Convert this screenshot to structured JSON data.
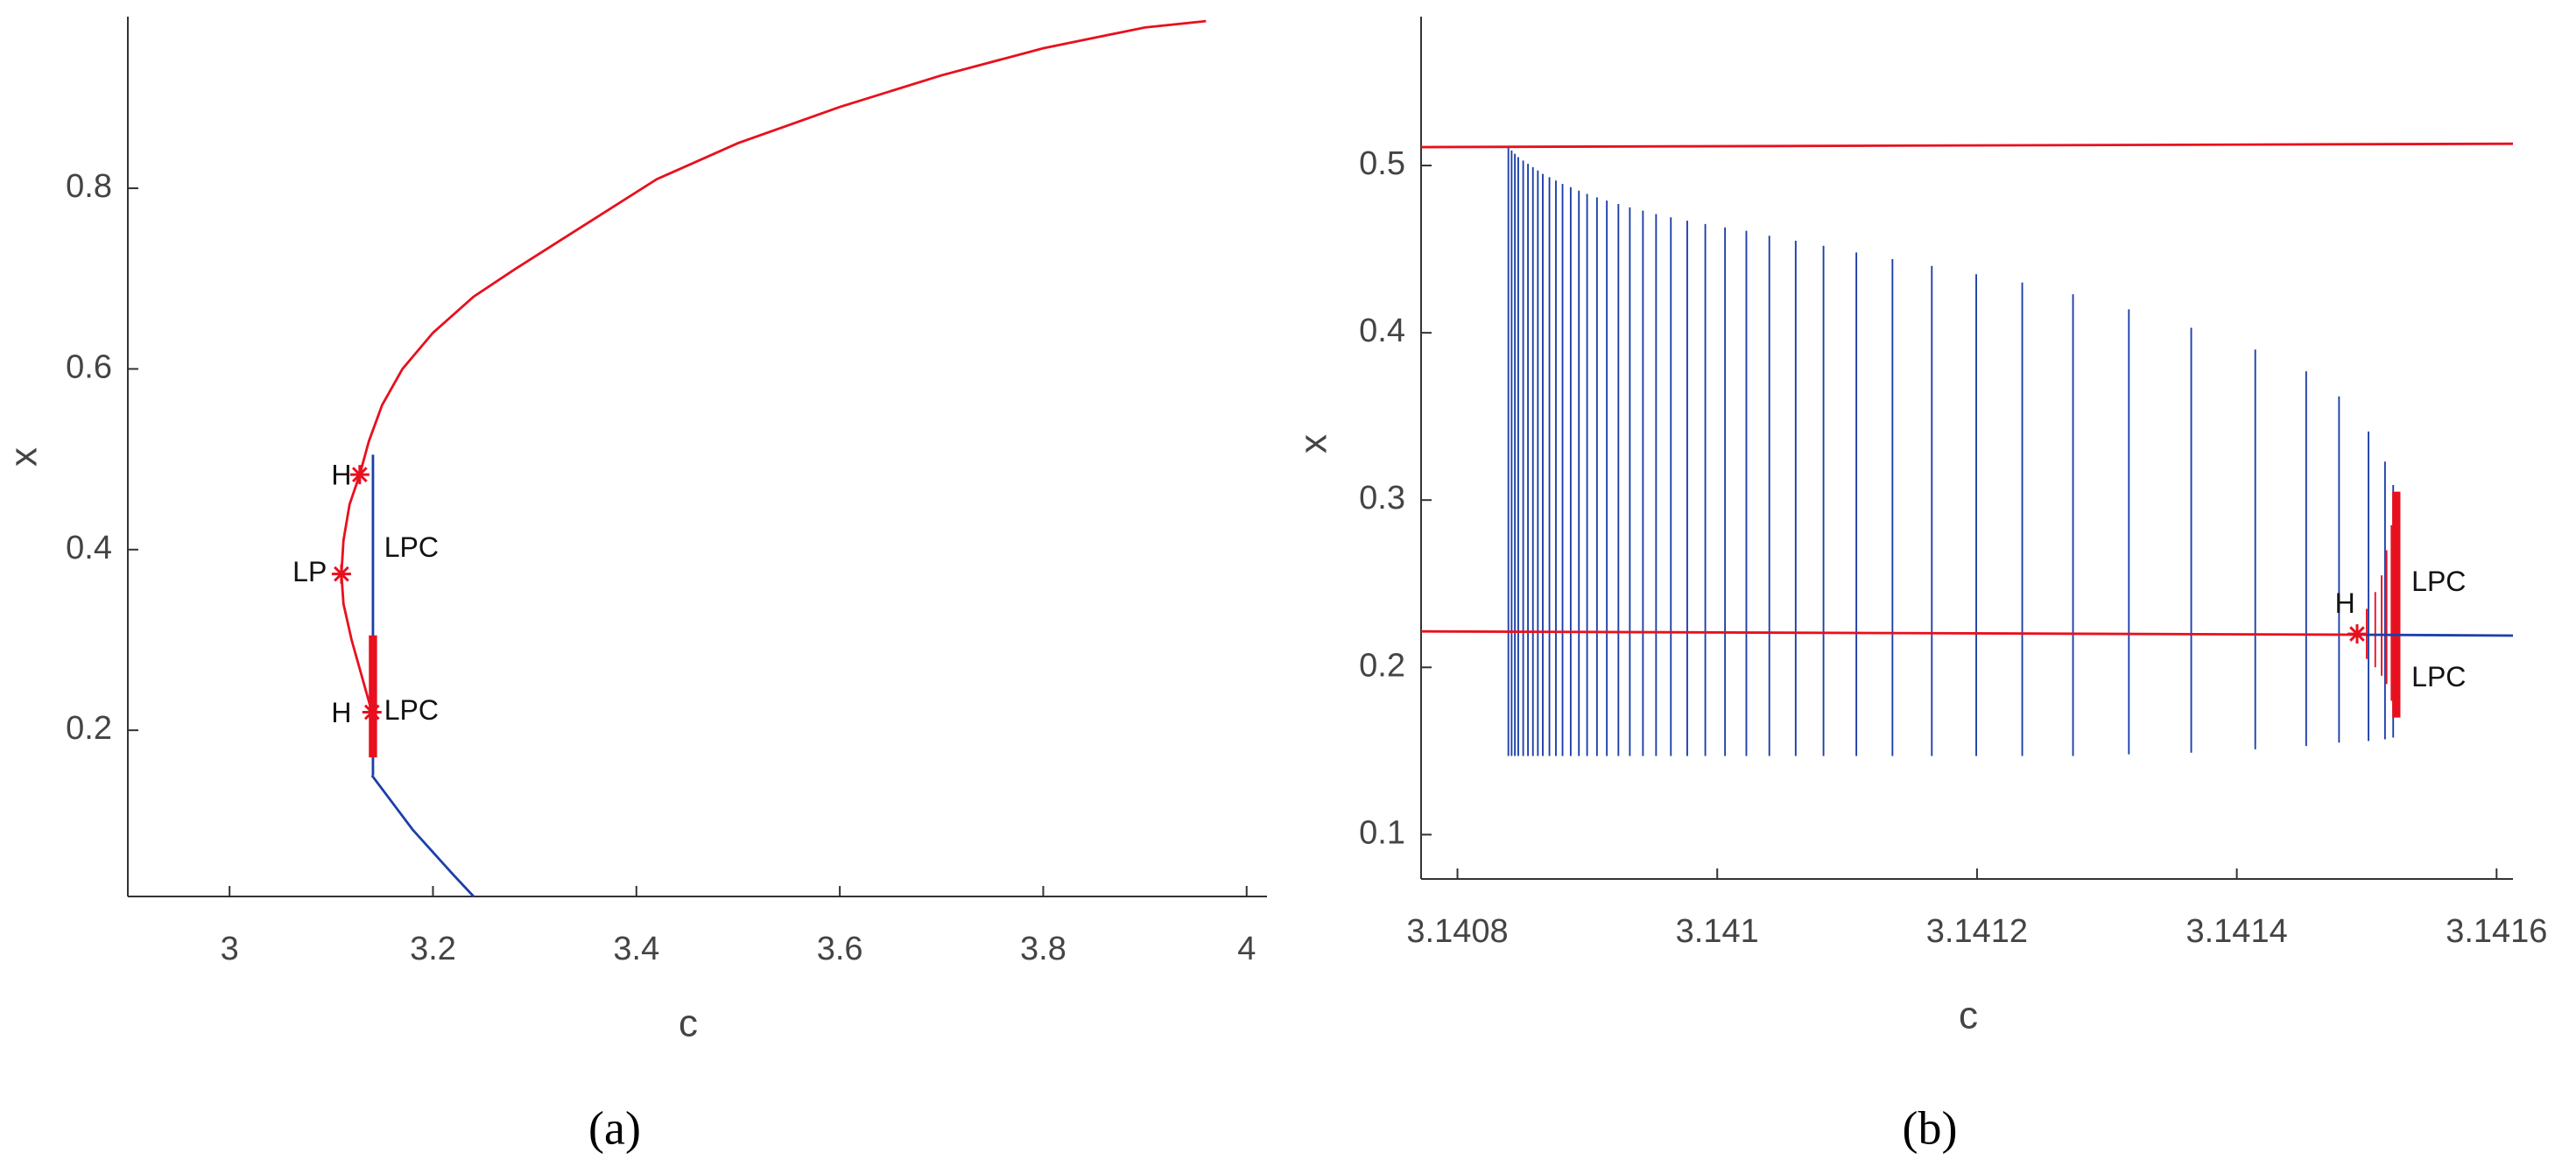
{
  "chart_data": [
    {
      "type": "line",
      "caption": "(a)",
      "xlabel": "c",
      "ylabel": "x",
      "xlim": [
        2.9,
        4.02
      ],
      "ylim": [
        0.016,
        0.99
      ],
      "xticks": [
        3,
        3.2,
        3.4,
        3.6,
        3.8,
        4
      ],
      "yticks": [
        0.2,
        0.4,
        0.6,
        0.8
      ],
      "series": [
        {
          "color": "#e8101e",
          "linewidth": 1.5,
          "x": [
            3.14,
            3.13,
            3.12,
            3.112,
            3.11,
            3.112,
            3.118,
            3.128,
            3.137,
            3.15,
            3.17,
            3.2,
            3.24,
            3.28,
            3.35,
            3.42,
            3.5,
            3.6,
            3.7,
            3.8,
            3.9,
            3.96
          ],
          "values": [
            0.22,
            0.26,
            0.3,
            0.34,
            0.373,
            0.41,
            0.45,
            0.483,
            0.52,
            0.56,
            0.6,
            0.64,
            0.68,
            0.71,
            0.76,
            0.81,
            0.85,
            0.89,
            0.925,
            0.955,
            0.978,
            0.985
          ]
        },
        {
          "color": "#1c3fa8",
          "linewidth": 1.5,
          "x": [
            3.14,
            3.16,
            3.18,
            3.2,
            3.22,
            3.24
          ],
          "values": [
            0.15,
            0.12,
            0.09,
            0.065,
            0.04,
            0.016
          ]
        }
      ],
      "ranges": [
        {
          "color": "#1c3fa8",
          "linewidth": 1.5,
          "x": [
            3.141
          ],
          "low": [
            0.15
          ],
          "high": [
            0.505
          ]
        },
        {
          "color": "#e8101e",
          "linewidth": 5,
          "x": [
            3.141
          ],
          "low": [
            0.17
          ],
          "high": [
            0.305
          ]
        }
      ],
      "markers": {
        "color": "#e8101e",
        "x": [
          3.128,
          3.11,
          3.14
        ],
        "y": [
          0.483,
          0.373,
          0.22
        ]
      },
      "annotations": [
        {
          "text": "H",
          "x": 3.1,
          "y": 0.48
        },
        {
          "text": "LP",
          "x": 3.062,
          "y": 0.373
        },
        {
          "text": "LPC",
          "x": 3.152,
          "y": 0.4
        },
        {
          "text": "H",
          "x": 3.1,
          "y": 0.217
        },
        {
          "text": "LPC",
          "x": 3.152,
          "y": 0.22
        }
      ]
    },
    {
      "type": "line",
      "caption": "(b)",
      "xlabel": "c",
      "ylabel": "x",
      "xlim": [
        3.140772,
        3.1416126
      ],
      "ylim": [
        0.0735,
        0.589
      ],
      "xticks": [
        3.1408,
        3.141,
        3.1412,
        3.1414,
        3.1416
      ],
      "yticks": [
        0.1,
        0.2,
        0.3,
        0.4,
        0.5
      ],
      "series": [
        {
          "color": "#e8101e",
          "linewidth": 1.5,
          "x": [
            3.140772,
            3.1416126
          ],
          "values": [
            0.511,
            0.513
          ]
        },
        {
          "color": "#e8101e",
          "linewidth": 1.5,
          "x": [
            3.140772,
            3.1414926
          ],
          "values": [
            0.2215,
            0.2195
          ]
        },
        {
          "color": "#1c3fa8",
          "linewidth": 1.5,
          "x": [
            3.1414926,
            3.1416126
          ],
          "values": [
            0.2195,
            0.219
          ]
        }
      ],
      "ranges": [
        {
          "color": "#1c3fa8",
          "linewidth": 1,
          "x": [
            3.1408392,
            3.1408417,
            3.1408442,
            3.1408468,
            3.1408506,
            3.1408543,
            3.1408581,
            3.1408619,
            3.1408657,
            3.1408708,
            3.1408758,
            3.1408809,
            3.1408872,
            3.1408935,
            3.1408998,
            3.1409074,
            3.140915,
            3.1409239,
            3.1409327,
            3.1409428,
            3.1409529,
            3.1409643,
            3.1409769,
            3.1409908,
            3.141006,
            3.1410224,
            3.1410401,
            3.1410604,
            3.1410818,
            3.1411071,
            3.1411349,
            3.1411652,
            3.1411994,
            3.1412348,
            3.1412739,
            3.1413169,
            3.1413649,
            3.1414142,
            3.1414534,
            3.1414787,
            3.1415014,
            3.1415141,
            3.1415204
          ],
          "low": [
            0.147,
            0.147,
            0.147,
            0.147,
            0.147,
            0.147,
            0.147,
            0.147,
            0.147,
            0.147,
            0.147,
            0.147,
            0.147,
            0.147,
            0.147,
            0.147,
            0.147,
            0.147,
            0.147,
            0.147,
            0.147,
            0.147,
            0.147,
            0.147,
            0.147,
            0.147,
            0.147,
            0.147,
            0.147,
            0.147,
            0.147,
            0.147,
            0.147,
            0.147,
            0.147,
            0.148,
            0.149,
            0.151,
            0.153,
            0.155,
            0.156,
            0.157,
            0.158
          ],
          "high": [
            0.511,
            0.509,
            0.507,
            0.505,
            0.503,
            0.501,
            0.499,
            0.497,
            0.495,
            0.493,
            0.491,
            0.489,
            0.487,
            0.485,
            0.483,
            0.481,
            0.479,
            0.477,
            0.475,
            0.473,
            0.471,
            0.469,
            0.467,
            0.465,
            0.463,
            0.461,
            0.458,
            0.455,
            0.452,
            0.448,
            0.444,
            0.44,
            0.435,
            0.43,
            0.423,
            0.414,
            0.403,
            0.39,
            0.377,
            0.362,
            0.341,
            0.323,
            0.309
          ]
        },
        {
          "color": "#e8101e",
          "linewidth": 1,
          "x": [
            3.1415,
            3.1415066,
            3.1415115,
            3.1415153,
            3.1415191
          ],
          "low": [
            0.205,
            0.2,
            0.195,
            0.19,
            0.18
          ],
          "high": [
            0.235,
            0.245,
            0.255,
            0.27,
            0.285
          ]
        },
        {
          "color": "#e8101e",
          "linewidth": 5,
          "x": [
            3.1415228
          ],
          "low": [
            0.17
          ],
          "high": [
            0.305
          ]
        }
      ],
      "markers": {
        "color": "#e8101e",
        "x": [
          3.1414926
        ],
        "y": [
          0.22
        ]
      },
      "annotations": [
        {
          "text": "H",
          "x": 3.1414755,
          "y": 0.237
        },
        {
          "text": "LPC",
          "x": 3.1415345,
          "y": 0.25
        },
        {
          "text": "LPC",
          "x": 3.1415345,
          "y": 0.193
        }
      ]
    }
  ]
}
